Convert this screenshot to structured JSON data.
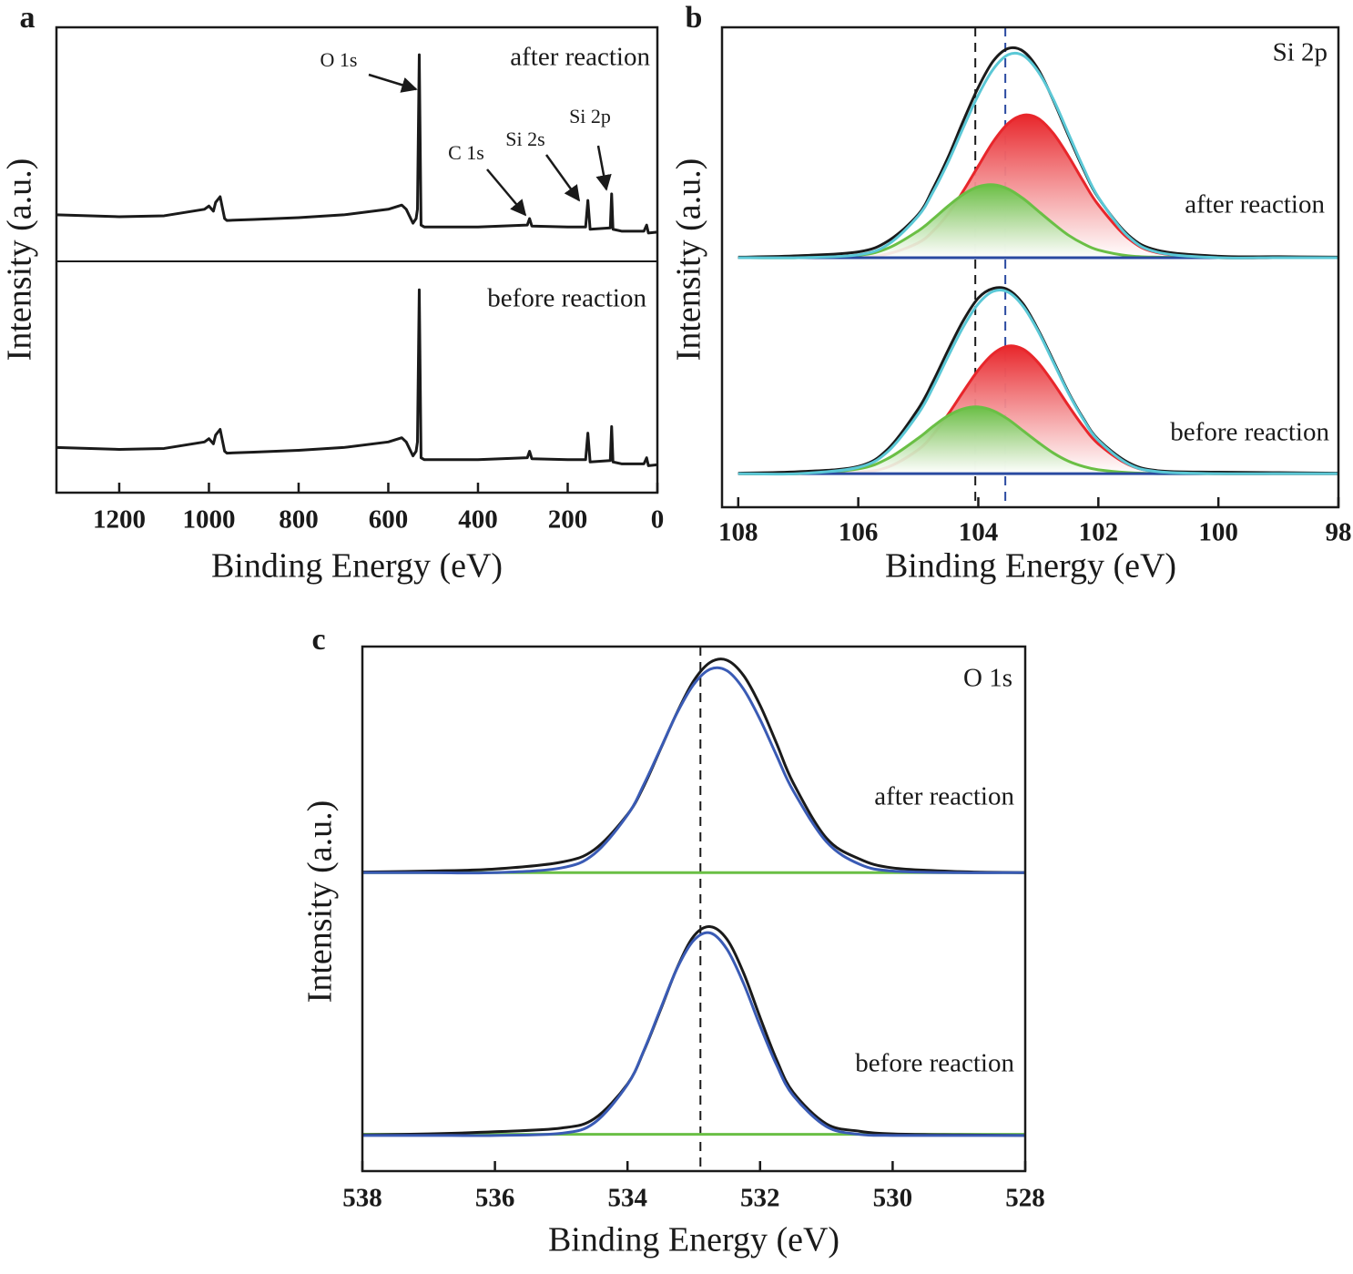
{
  "chart_data": [
    {
      "type": "line",
      "panel_label": "a",
      "xlabel": "Binding Energy (eV)",
      "ylabel": "Intensity (a.u.)",
      "xlim": [
        1340,
        0
      ],
      "ylim": [
        0,
        100
      ],
      "xticks": [
        1200,
        1000,
        800,
        600,
        400,
        200,
        0
      ],
      "annotations": [
        "O 1s",
        "C 1s",
        "Si 2s",
        "Si 2p",
        "after reaction",
        "before reaction"
      ],
      "x": [
        1340,
        1200,
        1100,
        1010,
        1000,
        990,
        985,
        975,
        965,
        960,
        900,
        800,
        700,
        600,
        570,
        560,
        545,
        538,
        535,
        531,
        527,
        520,
        500,
        400,
        290,
        285,
        280,
        200,
        160,
        155,
        150,
        105,
        102,
        99,
        80,
        30,
        24,
        20,
        0
      ],
      "series": [
        {
          "color": "#1a1a1a",
          "values": [
            59.7,
            59.3,
            59.5,
            60.9,
            61.6,
            60.5,
            62.4,
            63.6,
            58.9,
            58.5,
            58.7,
            59.1,
            59.7,
            60.9,
            61.8,
            60.9,
            57.9,
            58.9,
            60.9,
            94.1,
            57.5,
            57.1,
            57.1,
            57.1,
            57.5,
            58.9,
            57.3,
            57.1,
            57.1,
            62.8,
            56.6,
            56.9,
            64.2,
            56.6,
            56.2,
            56.2,
            57.5,
            55.8,
            56.0
          ]
        },
        {
          "color": "#1a1a1a",
          "values": [
            9.7,
            9.3,
            9.5,
            10.9,
            11.6,
            10.5,
            12.4,
            13.6,
            8.9,
            8.5,
            8.7,
            9.1,
            9.7,
            10.9,
            11.8,
            10.9,
            7.9,
            8.9,
            10.9,
            43.6,
            7.5,
            7.1,
            7.1,
            7.1,
            7.5,
            8.9,
            7.3,
            7.1,
            7.1,
            12.8,
            6.6,
            6.9,
            14.2,
            6.6,
            6.2,
            6.2,
            7.5,
            5.8,
            6.0
          ]
        }
      ]
    },
    {
      "type": "line",
      "panel_label": "b",
      "xlabel": "Binding Energy (eV)",
      "ylabel": "Intensity (a.u.)",
      "xlim": [
        108.27,
        98
      ],
      "ylim": [
        0,
        100
      ],
      "xticks": [
        108,
        106,
        104,
        102,
        100,
        98
      ],
      "smooth": true,
      "annotations": [
        "Si 2p",
        "after reaction",
        "before reaction"
      ],
      "vlines": [
        {
          "value": 104.05,
          "color": "#1a1a1a"
        },
        {
          "value": 103.55,
          "color": "#2a4aa0"
        }
      ],
      "x": [
        108,
        107,
        106,
        105.5,
        105,
        104.75,
        104.5,
        104.25,
        104,
        103.75,
        103.5,
        103.25,
        103,
        102.75,
        102.5,
        102.25,
        102,
        101.5,
        101,
        100,
        99,
        98
      ],
      "series": [
        {
          "color": "#e8262b",
          "fill": true,
          "values": [
            52,
            52,
            52.1,
            52.8,
            55.1,
            57.6,
            61.2,
            65.9,
            71.1,
            76.2,
            80.0,
            81.7,
            81.0,
            77.9,
            73.2,
            67.9,
            63.0,
            56.0,
            53.0,
            52,
            52,
            52
          ]
        },
        {
          "color": "#6abf45",
          "fill": true,
          "values": [
            52,
            52,
            52.5,
            54.0,
            57.6,
            60.1,
            62.8,
            65.2,
            66.8,
            67.2,
            66.3,
            64.3,
            61.7,
            59.1,
            56.7,
            54.9,
            53.6,
            52.4,
            52.1,
            52,
            52,
            52
          ]
        },
        {
          "color": "#2a4aa0",
          "values": [
            52,
            52,
            52,
            52,
            52,
            52,
            52,
            52,
            52,
            52,
            52,
            52,
            52,
            52,
            52,
            52,
            52,
            52,
            52,
            52,
            52,
            52
          ]
        },
        {
          "color": "#1a1a1a",
          "values": [
            52.1,
            52.4,
            53.2,
            55.5,
            61.0,
            66.5,
            73.0,
            80.5,
            87.5,
            93.0,
            95.6,
            95.0,
            91.2,
            84.8,
            77.5,
            70.5,
            64.5,
            56.7,
            53.5,
            52.3,
            52.2,
            52.1
          ]
        },
        {
          "color": "#5bc8d6",
          "values": [
            52,
            52,
            52.6,
            54.8,
            60.7,
            65.8,
            72.0,
            79.1,
            85.9,
            91.3,
            94.3,
            94.1,
            90.7,
            85.0,
            77.9,
            70.8,
            64.6,
            56.4,
            53.1,
            52,
            52,
            52
          ]
        },
        {
          "color": "#e8262b",
          "fill": true,
          "values": [
            7,
            7,
            7.3,
            8.4,
            12.0,
            15.2,
            19.4,
            24.1,
            28.6,
            32.0,
            33.6,
            32.9,
            30.1,
            25.9,
            21.2,
            16.8,
            13.2,
            8.9,
            7.4,
            7,
            7,
            7
          ]
        },
        {
          "color": "#6abf45",
          "fill": true,
          "values": [
            7,
            7,
            8.0,
            10.2,
            14.4,
            16.9,
            19.1,
            20.5,
            20.9,
            20.1,
            18.3,
            15.9,
            13.5,
            11.3,
            9.6,
            8.5,
            7.8,
            7.2,
            7,
            7,
            7,
            7
          ]
        },
        {
          "color": "#2a4aa0",
          "values": [
            7,
            7,
            7,
            7,
            7,
            7,
            7,
            7,
            7,
            7,
            7,
            7,
            7,
            7,
            7,
            7,
            7,
            7,
            7,
            7,
            7,
            7
          ]
        },
        {
          "color": "#1a1a1a",
          "values": [
            7.1,
            7.4,
            8.5,
            12.2,
            20.5,
            26.3,
            32.8,
            38.9,
            43.6,
            45.6,
            45.3,
            42.3,
            36.9,
            30.5,
            24.0,
            18.5,
            14.1,
            9.3,
            7.6,
            7.3,
            7.2,
            7.1
          ]
        },
        {
          "color": "#5bc8d6",
          "values": [
            7,
            7.0,
            8.3,
            11.7,
            19.5,
            25.1,
            31.5,
            37.6,
            42.4,
            45.0,
            44.8,
            41.8,
            36.6,
            30.2,
            23.8,
            18.3,
            13.9,
            9.0,
            7.4,
            7,
            7,
            7
          ]
        }
      ]
    },
    {
      "type": "line",
      "panel_label": "c",
      "xlabel": "Binding Energy (eV)",
      "ylabel": "Intensity (a.u.)",
      "xlim": [
        538,
        528
      ],
      "ylim": [
        0,
        100
      ],
      "xticks": [
        538,
        536,
        534,
        532,
        530,
        528
      ],
      "smooth": true,
      "annotations": [
        "O 1s",
        "after reaction",
        "before reaction"
      ],
      "vlines": [
        {
          "value": 532.9,
          "color": "#1a1a1a"
        }
      ],
      "x": [
        538,
        537,
        536,
        535,
        534.5,
        534,
        533.75,
        533.5,
        533.25,
        533,
        532.75,
        532.5,
        532.25,
        532,
        531.75,
        531.5,
        531,
        530.5,
        530,
        529,
        528
      ],
      "series": [
        {
          "color": "#6abf45",
          "values": [
            56.9,
            56.9,
            56.9,
            56.9,
            56.9,
            56.9,
            56.9,
            56.9,
            56.9,
            56.9,
            56.9,
            56.9,
            56.9,
            56.9,
            56.9,
            56.9,
            56.9,
            56.9,
            56.9,
            56.9,
            56.9
          ]
        },
        {
          "color": "#1a1a1a",
          "values": [
            57.0,
            57.2,
            57.6,
            58.9,
            61.3,
            68.0,
            73.5,
            80.5,
            87.5,
            93.5,
            97.0,
            97.4,
            94.5,
            88.8,
            81.5,
            74.0,
            63.5,
            59.5,
            57.8,
            57.1,
            56.9
          ]
        },
        {
          "color": "#3a5bb5",
          "values": [
            56.9,
            56.9,
            56.9,
            57.8,
            60.5,
            67.9,
            73.8,
            80.6,
            87.4,
            92.8,
            95.7,
            95.4,
            91.9,
            86.1,
            79.2,
            72.5,
            62.8,
            58.5,
            57.2,
            56.9,
            56.9
          ]
        },
        {
          "color": "#6abf45",
          "values": [
            7.0,
            7.0,
            7.0,
            7.0,
            7.0,
            7.0,
            7.0,
            7.0,
            7.0,
            7.0,
            7.0,
            7.0,
            7.0,
            7.0,
            7.0,
            7.0,
            7.0,
            7.0,
            7.0,
            7.0,
            7.0
          ]
        },
        {
          "color": "#1a1a1a",
          "values": [
            6.9,
            7.1,
            7.5,
            8.2,
            10.0,
            16.6,
            23.0,
            30.8,
            38.8,
            44.8,
            46.6,
            44.2,
            37.8,
            29.3,
            21.2,
            15.0,
            9.0,
            7.6,
            7.1,
            6.9,
            6.8
          ]
        },
        {
          "color": "#3a5bb5",
          "values": [
            6.8,
            6.8,
            6.8,
            7.2,
            9.2,
            16.5,
            23.1,
            31.0,
            38.7,
            44.0,
            45.4,
            42.3,
            35.8,
            27.7,
            20.2,
            14.4,
            8.5,
            7.0,
            6.8,
            6.8,
            6.8
          ]
        }
      ]
    }
  ]
}
